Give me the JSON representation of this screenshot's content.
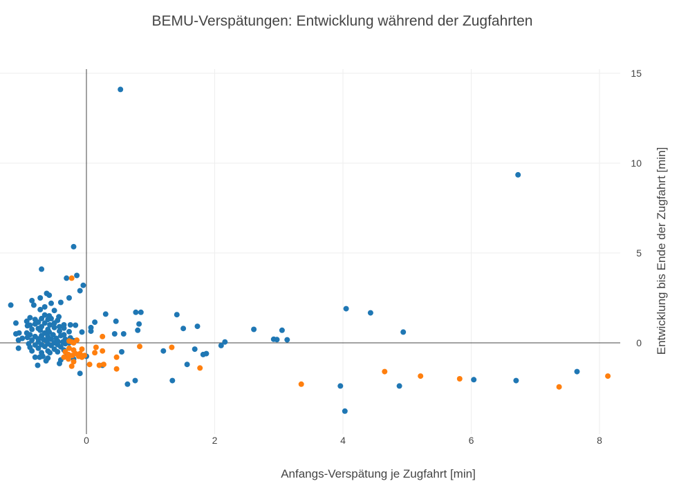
{
  "chart_data": {
    "type": "scatter",
    "title": "BEMU-Verspätungen: Entwicklung während der Zugfahrten",
    "xlabel": "Anfangs-Verspätung je Zugfahrt [min]",
    "ylabel": "Entwicklung bis Ende der Zugfahrt [min]",
    "xlim": [
      -1.35,
      8.3
    ],
    "ylim": [
      -4.8,
      15.2
    ],
    "xticks": [
      0,
      2,
      4,
      6,
      8
    ],
    "xtick_labels": [
      "0",
      "2",
      "4",
      "6",
      "8"
    ],
    "yticks": [
      0,
      5,
      10,
      15
    ],
    "ytick_labels": [
      "0",
      "5",
      "10",
      "15"
    ],
    "yaxis_side": "right",
    "grid": true,
    "legend": "none",
    "colors": {
      "series_a": "#1f77b4",
      "series_b": "#ff7f0e"
    },
    "series": [
      {
        "name": "series_a",
        "color": "#1f77b4",
        "points": [
          [
            0.53,
            14.1
          ],
          [
            6.73,
            9.35
          ],
          [
            -0.2,
            5.35
          ],
          [
            -0.7,
            4.1
          ],
          [
            -0.15,
            3.75
          ],
          [
            -0.31,
            3.6
          ],
          [
            -0.05,
            3.2
          ],
          [
            -0.1,
            2.9
          ],
          [
            -0.62,
            2.75
          ],
          [
            -0.58,
            2.65
          ],
          [
            -0.72,
            2.5
          ],
          [
            -0.27,
            2.5
          ],
          [
            -0.85,
            2.35
          ],
          [
            -0.4,
            2.25
          ],
          [
            -0.55,
            2.2
          ],
          [
            -0.82,
            2.1
          ],
          [
            -1.18,
            2.1
          ],
          [
            -0.65,
            2.0
          ],
          [
            4.05,
            1.9
          ],
          [
            -0.72,
            1.85
          ],
          [
            -0.5,
            1.8
          ],
          [
            0.85,
            1.7
          ],
          [
            0.77,
            1.7
          ],
          [
            4.43,
            1.67
          ],
          [
            0.3,
            1.6
          ],
          [
            1.41,
            1.57
          ],
          [
            -0.65,
            1.55
          ],
          [
            -0.58,
            1.5
          ],
          [
            -0.43,
            1.45
          ],
          [
            -0.88,
            1.4
          ],
          [
            -0.55,
            1.35
          ],
          [
            -0.7,
            1.35
          ],
          [
            -0.8,
            1.3
          ],
          [
            -0.6,
            1.3
          ],
          [
            -0.45,
            1.25
          ],
          [
            0.46,
            1.2
          ],
          [
            -0.93,
            1.2
          ],
          [
            -0.75,
            1.15
          ],
          [
            0.13,
            1.15
          ],
          [
            -0.5,
            1.1
          ],
          [
            -0.65,
            1.1
          ],
          [
            -1.1,
            1.1
          ],
          [
            0.82,
            1.05
          ],
          [
            -0.8,
            1.05
          ],
          [
            -0.57,
            1.0
          ],
          [
            -0.35,
            1.0
          ],
          [
            -0.25,
            1.0
          ],
          [
            -0.17,
            0.98
          ],
          [
            -0.88,
            0.98
          ],
          [
            -0.92,
            0.95
          ],
          [
            -0.42,
            0.9
          ],
          [
            1.73,
            0.92
          ],
          [
            -0.7,
            0.9
          ],
          [
            0.07,
            0.85
          ],
          [
            -0.5,
            0.85
          ],
          [
            -0.35,
            0.82
          ],
          [
            -0.75,
            0.8
          ],
          [
            1.51,
            0.8
          ],
          [
            -0.6,
            0.75
          ],
          [
            2.61,
            0.75
          ],
          [
            -0.85,
            0.75
          ],
          [
            0.8,
            0.7
          ],
          [
            3.05,
            0.7
          ],
          [
            -0.72,
            0.7
          ],
          [
            0.07,
            0.65
          ],
          [
            -0.42,
            0.65
          ],
          [
            -0.27,
            0.62
          ],
          [
            4.94,
            0.6
          ],
          [
            -0.07,
            0.6
          ],
          [
            -0.58,
            0.6
          ],
          [
            -0.93,
            0.55
          ],
          [
            -1.05,
            0.55
          ],
          [
            -0.65,
            0.55
          ],
          [
            0.44,
            0.5
          ],
          [
            -1.1,
            0.5
          ],
          [
            0.58,
            0.5
          ],
          [
            -0.52,
            0.45
          ],
          [
            -0.35,
            0.45
          ],
          [
            -0.88,
            0.45
          ],
          [
            -0.4,
            0.4
          ],
          [
            -0.7,
            0.4
          ],
          [
            -0.8,
            0.35
          ],
          [
            -0.6,
            0.35
          ],
          [
            -0.92,
            0.3
          ],
          [
            -0.25,
            0.28
          ],
          [
            -0.47,
            0.25
          ],
          [
            -1.0,
            0.25
          ],
          [
            -0.75,
            0.22
          ],
          [
            -0.33,
            0.2
          ],
          [
            2.92,
            0.2
          ],
          [
            -0.55,
            0.2
          ],
          [
            -0.67,
            0.18
          ],
          [
            2.97,
            0.18
          ],
          [
            3.13,
            0.17
          ],
          [
            -1.06,
            0.15
          ],
          [
            -0.85,
            0.15
          ],
          [
            -0.2,
            0.12
          ],
          [
            -0.45,
            0.1
          ],
          [
            -0.62,
            0.1
          ],
          [
            -0.37,
            0.05
          ],
          [
            -0.75,
            0.05
          ],
          [
            2.16,
            0.05
          ],
          [
            -0.5,
            0.0
          ],
          [
            -0.27,
            0.0
          ],
          [
            -0.9,
            -0.05
          ],
          [
            -0.6,
            -0.05
          ],
          [
            -0.33,
            -0.05
          ],
          [
            -0.45,
            -0.1
          ],
          [
            -0.7,
            -0.1
          ],
          [
            -0.8,
            -0.12
          ],
          [
            2.1,
            -0.15
          ],
          [
            -0.55,
            -0.15
          ],
          [
            -0.65,
            -0.2
          ],
          [
            -0.4,
            -0.22
          ],
          [
            -0.88,
            -0.25
          ],
          [
            -0.75,
            -0.3
          ],
          [
            -1.06,
            -0.3
          ],
          [
            -0.5,
            -0.35
          ],
          [
            1.69,
            -0.35
          ],
          [
            -0.35,
            -0.4
          ],
          [
            -0.6,
            -0.45
          ],
          [
            -0.85,
            -0.45
          ],
          [
            1.2,
            -0.45
          ],
          [
            -0.45,
            -0.5
          ],
          [
            0.55,
            -0.5
          ],
          [
            -0.7,
            -0.55
          ],
          [
            -0.57,
            -0.55
          ],
          [
            1.87,
            -0.6
          ],
          [
            1.82,
            -0.65
          ],
          [
            -0.3,
            -0.65
          ],
          [
            -0.68,
            -0.75
          ],
          [
            0.0,
            -0.75
          ],
          [
            -0.8,
            -0.8
          ],
          [
            -0.73,
            -0.8
          ],
          [
            -0.6,
            -0.85
          ],
          [
            -0.2,
            -0.9
          ],
          [
            -0.4,
            -0.95
          ],
          [
            -0.63,
            -1.0
          ],
          [
            -0.42,
            -1.15
          ],
          [
            1.57,
            -1.2
          ],
          [
            -0.76,
            -1.25
          ],
          [
            0.25,
            -1.25
          ],
          [
            -0.1,
            -1.7
          ],
          [
            7.65,
            -1.6
          ],
          [
            0.76,
            -2.1
          ],
          [
            1.34,
            -2.1
          ],
          [
            6.04,
            -2.05
          ],
          [
            6.7,
            -2.1
          ],
          [
            0.64,
            -2.3
          ],
          [
            3.96,
            -2.4
          ],
          [
            4.88,
            -2.4
          ],
          [
            4.03,
            -3.8
          ]
        ]
      },
      {
        "name": "series_b",
        "color": "#ff7f0e",
        "points": [
          [
            -0.23,
            3.6
          ],
          [
            0.25,
            0.35
          ],
          [
            -0.15,
            0.15
          ],
          [
            -0.23,
            0.05
          ],
          [
            -0.27,
            0.1
          ],
          [
            -0.2,
            0.0
          ],
          [
            0.83,
            -0.2
          ],
          [
            1.33,
            -0.25
          ],
          [
            0.15,
            -0.25
          ],
          [
            -0.27,
            -0.3
          ],
          [
            -0.07,
            -0.35
          ],
          [
            -0.2,
            -0.4
          ],
          [
            0.25,
            -0.45
          ],
          [
            -0.33,
            -0.5
          ],
          [
            0.13,
            -0.55
          ],
          [
            -0.1,
            -0.6
          ],
          [
            -0.17,
            -0.6
          ],
          [
            -0.28,
            -0.65
          ],
          [
            -0.03,
            -0.7
          ],
          [
            -0.22,
            -0.7
          ],
          [
            -0.12,
            -0.75
          ],
          [
            -0.35,
            -0.8
          ],
          [
            -0.07,
            -0.8
          ],
          [
            0.47,
            -0.8
          ],
          [
            -0.28,
            -0.9
          ],
          [
            -0.2,
            -1.05
          ],
          [
            0.05,
            -1.2
          ],
          [
            0.27,
            -1.2
          ],
          [
            0.2,
            -1.25
          ],
          [
            -0.23,
            -1.3
          ],
          [
            1.77,
            -1.4
          ],
          [
            0.47,
            -1.45
          ],
          [
            4.65,
            -1.6
          ],
          [
            5.21,
            -1.85
          ],
          [
            8.13,
            -1.85
          ],
          [
            5.82,
            -2.0
          ],
          [
            3.35,
            -2.3
          ],
          [
            7.37,
            -2.45
          ]
        ]
      }
    ]
  }
}
